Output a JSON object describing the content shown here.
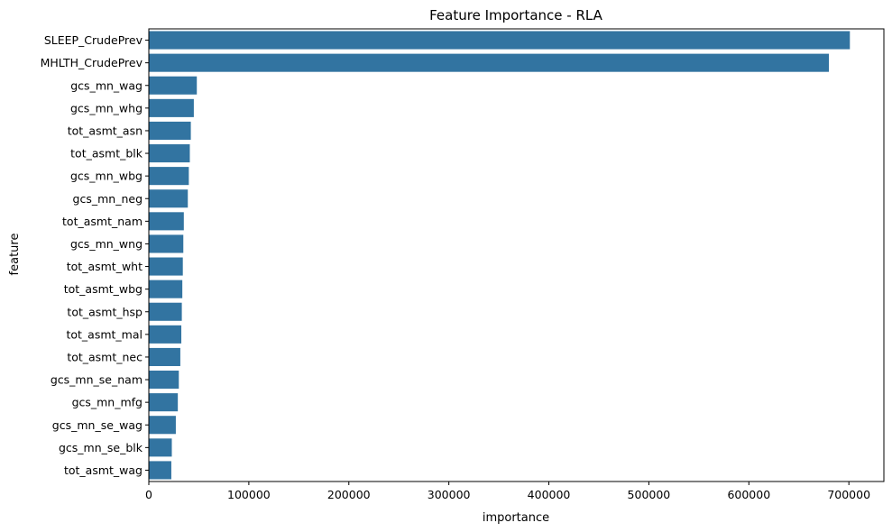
{
  "chart_data": {
    "type": "bar",
    "orientation": "horizontal",
    "title": "Feature Importance - RLA",
    "xlabel": "importance",
    "ylabel": "feature",
    "xlim": [
      0,
      735000
    ],
    "xticks": [
      0,
      100000,
      200000,
      300000,
      400000,
      500000,
      600000,
      700000
    ],
    "grid": false,
    "bar_color": "#3274a1",
    "categories": [
      "SLEEP_CrudePrev",
      "MHLTH_CrudePrev",
      "gcs_mn_wag",
      "gcs_mn_whg",
      "tot_asmt_asn",
      "tot_asmt_blk",
      "gcs_mn_wbg",
      "gcs_mn_neg",
      "tot_asmt_nam",
      "gcs_mn_wng",
      "tot_asmt_wht",
      "tot_asmt_wbg",
      "tot_asmt_hsp",
      "tot_asmt_mal",
      "tot_asmt_nec",
      "gcs_mn_se_nam",
      "gcs_mn_mfg",
      "gcs_mn_se_wag",
      "gcs_mn_se_blk",
      "tot_asmt_wag"
    ],
    "values": [
      701000,
      680000,
      48000,
      45000,
      42000,
      41000,
      40000,
      39000,
      35000,
      34500,
      34000,
      33500,
      33000,
      32500,
      31500,
      30000,
      29000,
      27000,
      23000,
      22500
    ]
  }
}
